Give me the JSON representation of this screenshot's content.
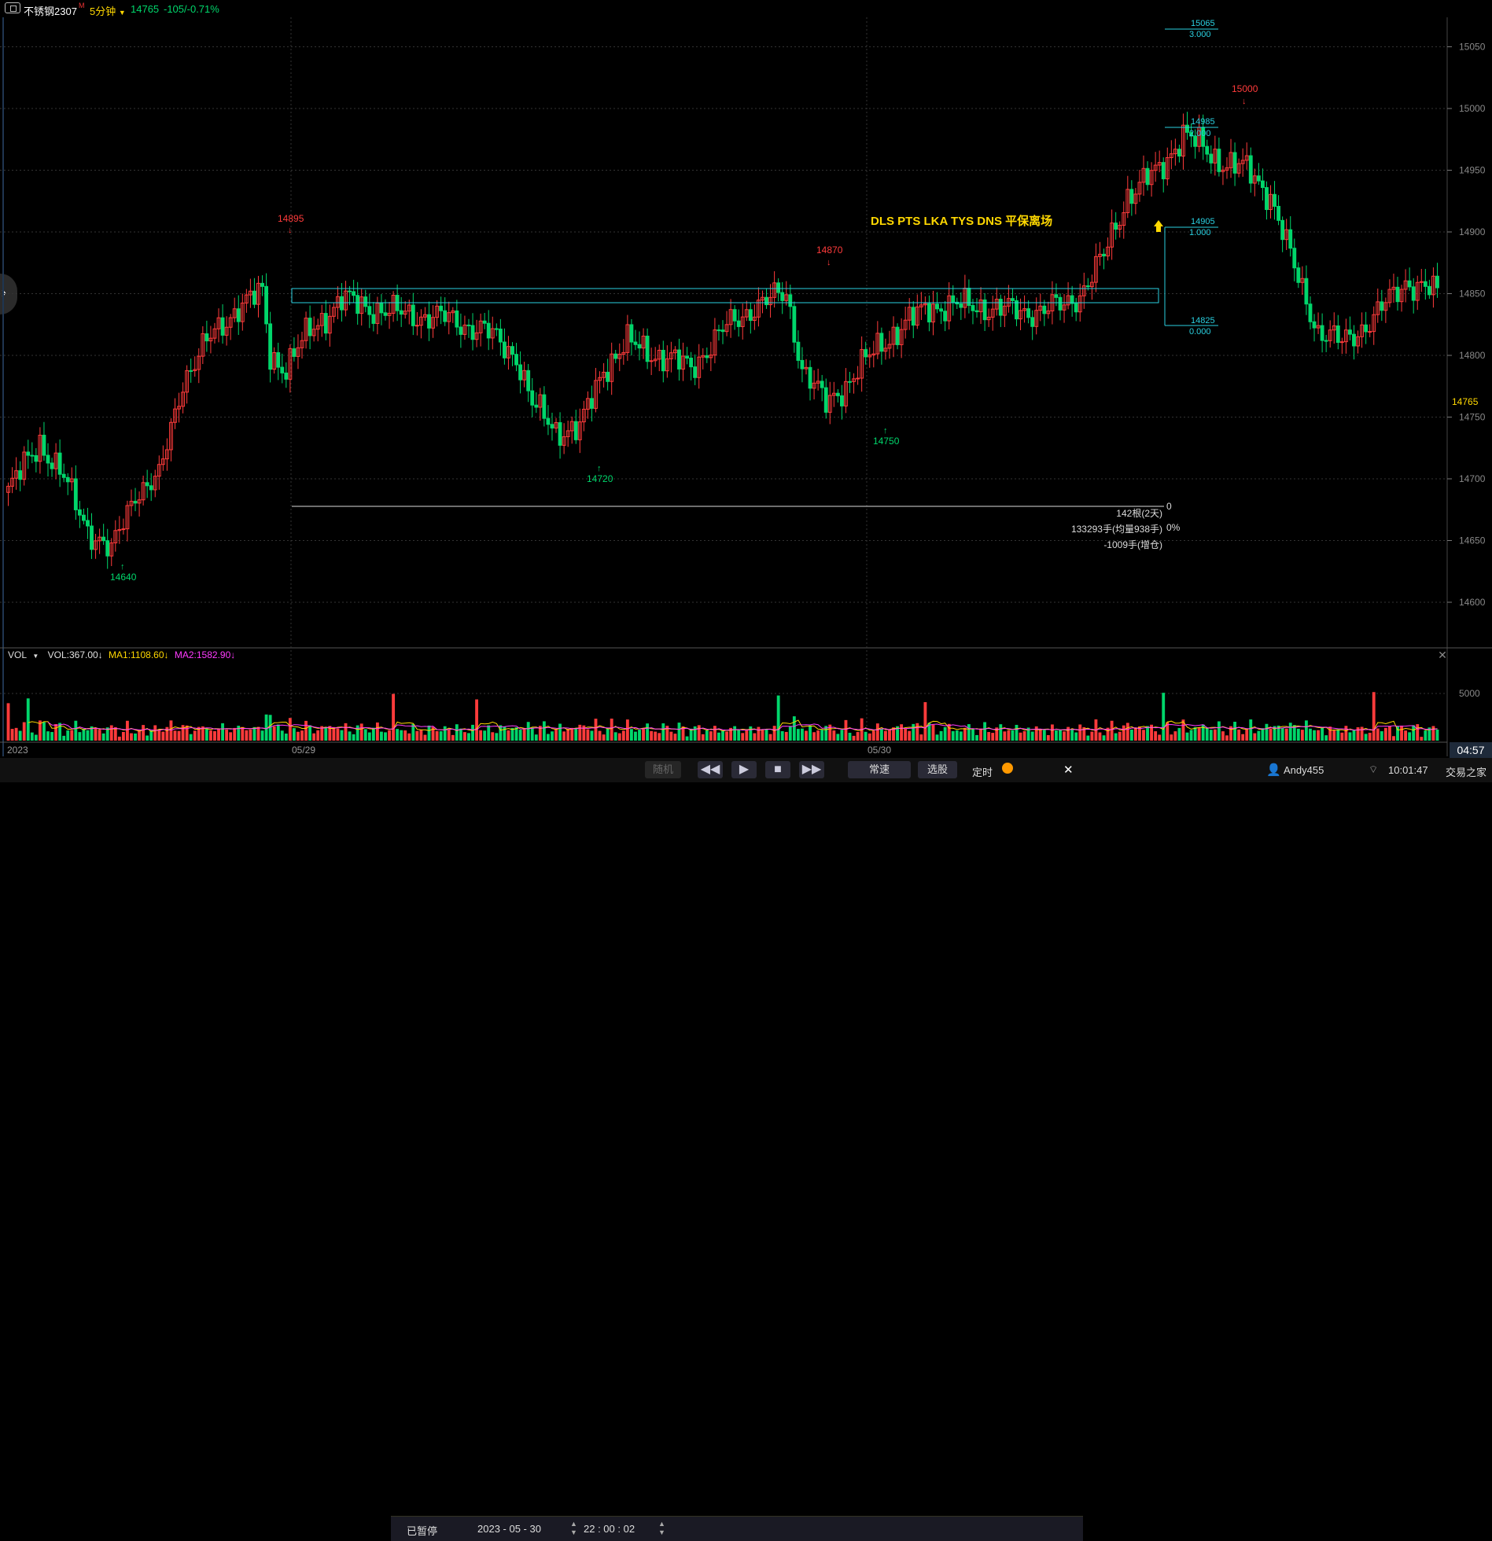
{
  "header": {
    "symbol": "不锈钢2307",
    "symbol_mark": "M",
    "period": "5分钟",
    "price": "14765",
    "change": "-105/-0.71%"
  },
  "colors": {
    "up": "#ff3b3b",
    "down": "#00d66b",
    "cyan": "#2ad0e0",
    "yellow": "#ffd800",
    "magenta": "#ff3bff"
  },
  "axis": {
    "price_ticks": [
      "15050",
      "15000",
      "14950",
      "14900",
      "14850",
      "14800",
      "14750",
      "14700",
      "14650",
      "14600"
    ],
    "current_price": "14765",
    "vol_tick": "5000",
    "date_labels": [
      "2023",
      "05/29",
      "05/30"
    ]
  },
  "annotations": {
    "high_left": "14895",
    "low_left": "14640",
    "low_mid": "14720",
    "high_mid": "14870",
    "low_right": "14750",
    "high_right": "15000",
    "signal_text": "DLS PTS LKA  TYS DNS  平保离场"
  },
  "fib": [
    {
      "price": "15065",
      "ratio": "3.000"
    },
    {
      "price": "14985",
      "ratio": "2.000"
    },
    {
      "price": "14905",
      "ratio": "1.000"
    },
    {
      "price": "14825",
      "ratio": "0.000"
    }
  ],
  "range_stats": {
    "zero": "0",
    "bars": "142根(2天)",
    "volume": "133293手(均量938手)",
    "pct": "0%",
    "oi": "-1009手(增仓)"
  },
  "volume_header": {
    "name": "VOL",
    "vol": "VOL:367.00↓",
    "ma1": "MA1:1108.60↓",
    "ma2": "MA2:1582.90↓"
  },
  "bottom": {
    "status": "已暂停",
    "date": "2023 - 05 - 30",
    "time": "22 : 00 : 02",
    "random": "随机",
    "speed": "常速",
    "pick": "选股",
    "timer": "定时",
    "user": "Andy455",
    "clock": "10:01:47",
    "brand": "交易之家",
    "countdown": "04:57"
  }
}
